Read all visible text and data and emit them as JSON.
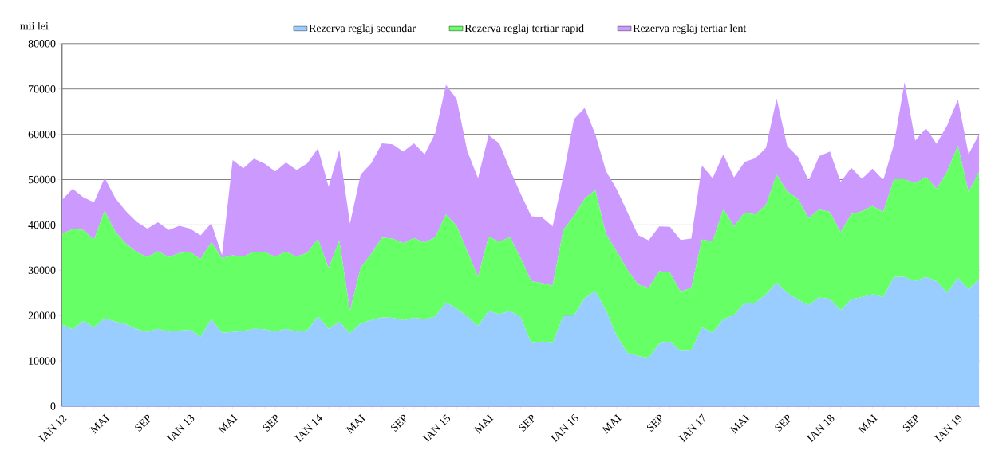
{
  "chart_data": {
    "type": "area",
    "stacked": true,
    "ylabel": "mii lei",
    "categories": [
      "IAN 12",
      null,
      null,
      null,
      "MAI",
      null,
      null,
      null,
      "SEP",
      null,
      null,
      null,
      "IAN 13",
      null,
      null,
      null,
      "MAI",
      null,
      null,
      null,
      "SEP",
      null,
      null,
      null,
      "IAN 14",
      null,
      null,
      null,
      "MAI",
      null,
      null,
      null,
      "SEP",
      null,
      null,
      null,
      "IAN 15",
      null,
      null,
      null,
      "MAI",
      null,
      null,
      null,
      "SEP",
      null,
      null,
      null,
      "IAN 16",
      null,
      null,
      null,
      "MAI",
      null,
      null,
      null,
      "SEP",
      null,
      null,
      null,
      "IAN 17",
      null,
      null,
      null,
      "MAI",
      null,
      null,
      null,
      "SEP",
      null,
      null,
      null,
      "IAN 18",
      null,
      null,
      null,
      "MAI",
      null,
      null,
      null,
      "SEP",
      null,
      null,
      null,
      "IAN 19",
      null,
      null
    ],
    "series": [
      {
        "name": "Rezerva reglaj secundar",
        "color": "#99ccff",
        "values": [
          18000,
          17000,
          18800,
          17400,
          19400,
          18700,
          18100,
          17000,
          16400,
          17100,
          16500,
          16700,
          16900,
          15400,
          19200,
          16200,
          16400,
          16600,
          17100,
          17000,
          16500,
          17100,
          16500,
          16800,
          19800,
          17100,
          18700,
          16100,
          18300,
          19000,
          19600,
          19500,
          19000,
          19500,
          19200,
          19800,
          22900,
          21600,
          19800,
          17700,
          21000,
          20300,
          21000,
          19700,
          13900,
          14300,
          13900,
          19900,
          20000,
          23800,
          25400,
          21200,
          15600,
          11800,
          11100,
          10700,
          13800,
          14300,
          12200,
          12300,
          17400,
          16200,
          19200,
          20100,
          22800,
          22800,
          24700,
          27300,
          25000,
          23500,
          22300,
          24000,
          23700,
          21200,
          23600,
          24100,
          24700,
          24100,
          28500,
          28500,
          27600,
          28500,
          27600,
          25100,
          28300,
          25900,
          28000
        ]
      },
      {
        "name": "Rezerva reglaj tertiar rapid",
        "color": "#66ff66",
        "values": [
          20000,
          22100,
          20100,
          19400,
          23700,
          19800,
          17800,
          17000,
          16500,
          17100,
          16400,
          17100,
          17100,
          17100,
          17000,
          16500,
          16900,
          16400,
          17000,
          17000,
          16500,
          17000,
          16500,
          17100,
          17100,
          13400,
          17900,
          4900,
          12300,
          14600,
          17600,
          17500,
          17000,
          17600,
          16900,
          17500,
          19400,
          18200,
          14400,
          10900,
          16400,
          16000,
          16300,
          13000,
          13700,
          12900,
          12700,
          19000,
          22000,
          22000,
          22300,
          16800,
          18600,
          18400,
          15800,
          15400,
          16000,
          15200,
          13100,
          13800,
          19400,
          20200,
          24300,
          19600,
          19900,
          19500,
          19700,
          23800,
          22400,
          22300,
          19200,
          19400,
          19200,
          17200,
          18800,
          18900,
          19500,
          18800,
          21600,
          21600,
          21600,
          22100,
          20400,
          26700,
          29200,
          21400,
          23700
        ]
      },
      {
        "name": "Rezerva reglaj tertiar lent",
        "color": "#cc99ff",
        "values": [
          7500,
          8900,
          7200,
          8200,
          7300,
          7400,
          7100,
          6700,
          6300,
          6400,
          6000,
          6000,
          5200,
          5200,
          4200,
          600,
          21000,
          19500,
          20500,
          19500,
          18800,
          19700,
          19100,
          19700,
          20000,
          17900,
          20000,
          19300,
          20500,
          20000,
          20800,
          20800,
          20200,
          20900,
          19500,
          23000,
          28600,
          28000,
          22100,
          21700,
          22400,
          21700,
          14900,
          14200,
          14300,
          14500,
          13100,
          11900,
          21300,
          20000,
          12300,
          13900,
          13700,
          12700,
          10900,
          10500,
          9900,
          10100,
          11400,
          10900,
          16300,
          13900,
          12100,
          10800,
          11200,
          12400,
          12600,
          16800,
          10000,
          9200,
          8300,
          11800,
          13300,
          11100,
          10200,
          7200,
          8200,
          7000,
          7700,
          21400,
          9400,
          10700,
          9900,
          10200,
          10200,
          8300,
          8400
        ]
      }
    ],
    "ylim": [
      0,
      80000
    ],
    "yticks": [
      0,
      10000,
      20000,
      30000,
      40000,
      50000,
      60000,
      70000,
      80000
    ],
    "grid": "y",
    "legend": "top"
  }
}
